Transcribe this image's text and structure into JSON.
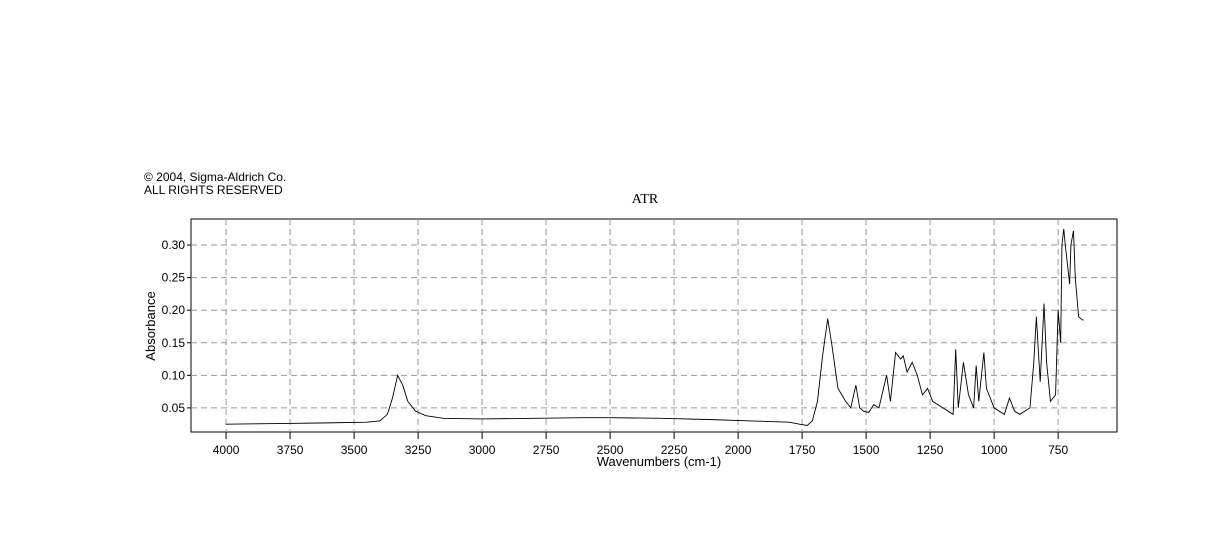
{
  "chart_data": {
    "type": "line",
    "copyright": "© 2004, Sigma-Aldrich Co.",
    "rights": "ALL RIGHTS RESERVED",
    "title": "ATR",
    "x_label": "Wavenumbers (cm-1)",
    "y_label": "Absorbance",
    "xlim": [
      4137,
      520
    ],
    "ylim": [
      0.013,
      0.34
    ],
    "xticks": [
      4000,
      3750,
      3500,
      3250,
      3000,
      2750,
      2500,
      2250,
      2000,
      1750,
      1500,
      1250,
      1000,
      750
    ],
    "yticks": [
      0.05,
      {
        "value": 0.1,
        "label": "0.10"
      },
      0.15,
      {
        "value": 0.2,
        "label": "0.20"
      },
      0.25,
      {
        "value": 0.3,
        "label": "0.30"
      }
    ],
    "grid": true,
    "series": [
      {
        "color": "#000000",
        "x": [
          4000,
          3800,
          3600,
          3450,
          3400,
          3370,
          3350,
          3330,
          3310,
          3290,
          3260,
          3220,
          3150,
          3000,
          2800,
          2600,
          2500,
          2300,
          2100,
          1950,
          1800,
          1760,
          1730,
          1710,
          1690,
          1670,
          1650,
          1635,
          1610,
          1580,
          1560,
          1540,
          1525,
          1510,
          1490,
          1470,
          1450,
          1420,
          1405,
          1385,
          1365,
          1355,
          1340,
          1320,
          1300,
          1280,
          1260,
          1240,
          1200,
          1160,
          1150,
          1140,
          1120,
          1100,
          1080,
          1070,
          1060,
          1040,
          1030,
          1000,
          960,
          940,
          920,
          900,
          880,
          860,
          845,
          835,
          820,
          805,
          795,
          780,
          760,
          750,
          740,
          735,
          728,
          722,
          705,
          700,
          690,
          683,
          670,
          655,
          650
        ],
        "values": [
          0.025,
          0.026,
          0.027,
          0.028,
          0.03,
          0.04,
          0.065,
          0.1,
          0.085,
          0.06,
          0.045,
          0.038,
          0.034,
          0.033,
          0.034,
          0.035,
          0.035,
          0.034,
          0.032,
          0.03,
          0.028,
          0.025,
          0.023,
          0.03,
          0.06,
          0.13,
          0.187,
          0.15,
          0.08,
          0.06,
          0.05,
          0.085,
          0.05,
          0.045,
          0.043,
          0.055,
          0.05,
          0.1,
          0.06,
          0.135,
          0.125,
          0.13,
          0.105,
          0.12,
          0.1,
          0.07,
          0.08,
          0.06,
          0.05,
          0.04,
          0.14,
          0.05,
          0.12,
          0.07,
          0.05,
          0.115,
          0.06,
          0.135,
          0.08,
          0.05,
          0.04,
          0.065,
          0.045,
          0.04,
          0.045,
          0.05,
          0.12,
          0.19,
          0.09,
          0.21,
          0.12,
          0.06,
          0.07,
          0.2,
          0.15,
          0.3,
          0.325,
          0.3,
          0.24,
          0.3,
          0.322,
          0.25,
          0.19,
          0.185,
          0.185
        ]
      }
    ]
  }
}
